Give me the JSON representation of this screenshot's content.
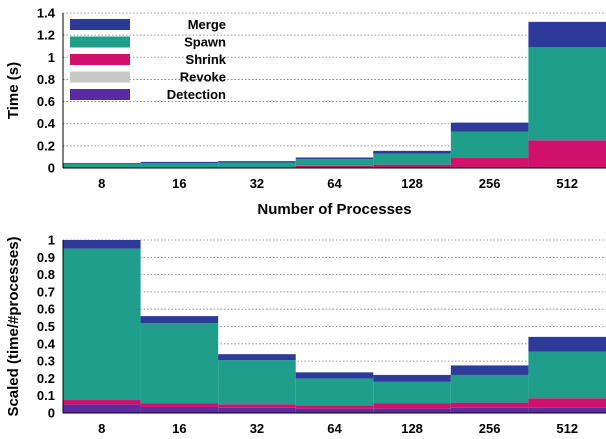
{
  "chart_data": [
    {
      "type": "bar",
      "stacked": true,
      "categories": [
        "8",
        "16",
        "32",
        "64",
        "128",
        "256",
        "512"
      ],
      "series": [
        {
          "name": "Detection",
          "color": "#5b2ca0",
          "values": [
            0.0,
            0.0,
            0.0,
            0.0,
            0.0,
            0.0,
            0.0
          ]
        },
        {
          "name": "Shrink",
          "color": "#d0106c",
          "values": [
            0.0,
            0.0,
            0.0,
            0.02,
            0.03,
            0.09,
            0.25
          ]
        },
        {
          "name": "Spawn",
          "color": "#1f9e8c",
          "values": [
            0.04,
            0.045,
            0.05,
            0.06,
            0.1,
            0.24,
            0.84
          ]
        },
        {
          "name": "Revoke",
          "color": "#c8c8c8",
          "values": [
            0.0,
            0.0,
            0.0,
            0.0,
            0.0,
            0.0,
            0.0
          ]
        },
        {
          "name": "Merge",
          "color": "#2e3a9a",
          "values": [
            0.005,
            0.01,
            0.012,
            0.015,
            0.025,
            0.08,
            0.23
          ]
        }
      ],
      "legend_order": [
        "Merge",
        "Spawn",
        "Shrink",
        "Revoke",
        "Detection"
      ],
      "legend_position": "top-left",
      "xlabel": "Number of Processes",
      "ylabel": "Time (s)",
      "ylim": [
        0,
        1.4
      ],
      "yticks": [
        "0",
        "0.2",
        "0.4",
        "0.6",
        "0.8",
        "1",
        "1.2",
        "1.4"
      ],
      "grid": true
    },
    {
      "type": "bar",
      "stacked": true,
      "categories": [
        "8",
        "16",
        "32",
        "64",
        "128",
        "256",
        "512"
      ],
      "series": [
        {
          "name": "Detection",
          "color": "#5b2ca0",
          "values": [
            0.05,
            0.035,
            0.03,
            0.025,
            0.025,
            0.03,
            0.03
          ]
        },
        {
          "name": "Shrink",
          "color": "#d0106c",
          "values": [
            0.025,
            0.02,
            0.02,
            0.02,
            0.03,
            0.03,
            0.055
          ]
        },
        {
          "name": "Spawn",
          "color": "#1f9e8c",
          "values": [
            0.875,
            0.465,
            0.255,
            0.155,
            0.125,
            0.16,
            0.27
          ]
        },
        {
          "name": "Revoke",
          "color": "#c8c8c8",
          "values": [
            0.0,
            0.0,
            0.0,
            0.0,
            0.0,
            0.0,
            0.0
          ]
        },
        {
          "name": "Merge",
          "color": "#2e3a9a",
          "values": [
            0.05,
            0.04,
            0.035,
            0.035,
            0.04,
            0.055,
            0.085
          ]
        }
      ],
      "xlabel": "",
      "ylabel": "Scaled (time/#processes)",
      "ylim": [
        0,
        1
      ],
      "yticks": [
        "0",
        "0.1",
        "0.2",
        "0.3",
        "0.4",
        "0.5",
        "0.6",
        "0.7",
        "0.8",
        "0.9",
        "1"
      ],
      "grid": true
    }
  ]
}
